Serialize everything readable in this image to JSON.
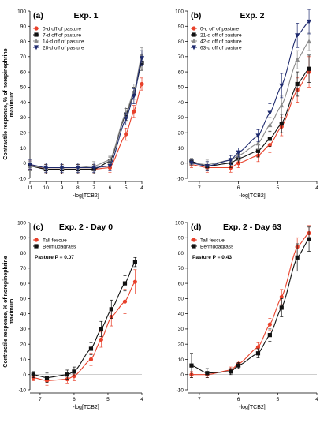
{
  "figure": {
    "y_axis_label_lines": [
      "Contractile response, % of norepinephrine",
      "maximum"
    ]
  },
  "chart_data": [
    {
      "type": "line",
      "panel_label": "(a)",
      "title": "Exp. 1",
      "xlabel": "-log[TCB2]",
      "xlim": [
        11,
        4
      ],
      "ylim": [
        -10,
        100
      ],
      "xticks": [
        11,
        10,
        9,
        8,
        7,
        6,
        5,
        4
      ],
      "yticks": [
        -10,
        0,
        10,
        20,
        30,
        40,
        50,
        60,
        70,
        80,
        90,
        100
      ],
      "legend_position": "top-left",
      "x": [
        11,
        10,
        9,
        8,
        7,
        6,
        5,
        4.5,
        4
      ],
      "series": [
        {
          "name": "0-d off of pasture",
          "color": "#e8402a",
          "marker": "circle",
          "values": [
            -1,
            -4,
            -4,
            -4,
            -4,
            -3,
            19,
            34,
            52
          ],
          "errors": [
            3,
            3,
            3,
            3,
            3,
            3,
            4,
            4,
            4
          ]
        },
        {
          "name": "7-d off of pasture",
          "color": "#111111",
          "marker": "square",
          "values": [
            -2,
            -4,
            -4,
            -4,
            -4,
            1,
            32,
            46,
            66
          ],
          "errors": [
            3,
            3,
            3,
            3,
            3,
            3,
            4,
            4,
            5
          ]
        },
        {
          "name": "14-d off of pasture",
          "color": "#8a8a8a",
          "marker": "triangle-up",
          "values": [
            -2,
            -3,
            -3,
            -3,
            -2,
            2,
            33,
            47,
            71
          ],
          "errors": [
            3,
            3,
            3,
            3,
            3,
            3,
            4,
            5,
            5
          ]
        },
        {
          "name": "28-d off of pasture",
          "color": "#1e2a6e",
          "marker": "triangle-down",
          "values": [
            -1,
            -3,
            -3,
            -3,
            -3,
            -2,
            29,
            44,
            69
          ],
          "errors": [
            3,
            3,
            3,
            3,
            3,
            3,
            4,
            5,
            5
          ]
        }
      ]
    },
    {
      "type": "line",
      "panel_label": "(b)",
      "title": "Exp. 2",
      "xlabel": "-log[TCB2]",
      "xlim": [
        7.3,
        4
      ],
      "ylim": [
        -10,
        100
      ],
      "xticks": [
        7,
        6,
        5,
        4
      ],
      "yticks": [
        -10,
        0,
        10,
        20,
        30,
        40,
        50,
        60,
        70,
        80,
        90,
        100
      ],
      "legend_position": "top-left",
      "x": [
        7.2,
        6.8,
        6.2,
        6,
        5.5,
        5.2,
        4.9,
        4.5,
        4.2
      ],
      "series": [
        {
          "name": "0-d off of pasture",
          "color": "#e8402a",
          "marker": "circle",
          "values": [
            -1,
            -3,
            -3,
            0,
            5,
            12,
            24,
            48,
            60
          ],
          "errors": [
            2,
            3,
            3,
            3,
            4,
            5,
            6,
            8,
            10
          ]
        },
        {
          "name": "21-d off of pasture",
          "color": "#111111",
          "marker": "square",
          "values": [
            1,
            -2,
            0,
            3,
            8,
            16,
            26,
            52,
            62
          ],
          "errors": [
            2,
            3,
            3,
            3,
            4,
            5,
            6,
            8,
            9
          ]
        },
        {
          "name": "42-d off of pasture",
          "color": "#8a8a8a",
          "marker": "triangle-up",
          "values": [
            0,
            -1,
            2,
            5,
            13,
            25,
            38,
            68,
            80
          ],
          "errors": [
            2,
            3,
            3,
            3,
            4,
            5,
            6,
            6,
            6
          ]
        },
        {
          "name": "63-d off of pasture",
          "color": "#1e2a6e",
          "marker": "triangle-down",
          "values": [
            0,
            -2,
            2,
            7,
            18,
            33,
            51,
            84,
            93
          ],
          "errors": [
            2,
            3,
            3,
            3,
            4,
            6,
            8,
            8,
            8
          ]
        }
      ]
    },
    {
      "type": "line",
      "panel_label": "(c)",
      "title": "Exp. 2 - Day 0",
      "annotation": "Pasture P = 0.07",
      "xlabel": "-log[TCB2]",
      "xlim": [
        7.3,
        4
      ],
      "ylim": [
        -10,
        100
      ],
      "xticks": [
        7,
        6,
        5,
        4
      ],
      "yticks": [
        -10,
        0,
        10,
        20,
        30,
        40,
        50,
        60,
        70,
        80,
        90,
        100
      ],
      "legend_position": "top-left",
      "x": [
        7.2,
        6.8,
        6.2,
        6,
        5.5,
        5.2,
        4.9,
        4.5,
        4.2
      ],
      "series": [
        {
          "name": "Tall fescue",
          "color": "#e8402a",
          "marker": "circle",
          "values": [
            -2,
            -4,
            -3,
            -1,
            10,
            23,
            38,
            48,
            61
          ],
          "errors": [
            2,
            3,
            3,
            3,
            4,
            5,
            6,
            8,
            8
          ]
        },
        {
          "name": "Bermudagrass",
          "color": "#111111",
          "marker": "square",
          "values": [
            0,
            -2,
            0,
            2,
            17,
            30,
            43,
            60,
            74
          ],
          "errors": [
            2,
            3,
            3,
            3,
            4,
            5,
            6,
            5,
            3
          ]
        }
      ]
    },
    {
      "type": "line",
      "panel_label": "(d)",
      "title": "Exp. 2 - Day 63",
      "annotation": "Pasture P = 0.43",
      "xlabel": "-log[TCB2]",
      "xlim": [
        7.3,
        4
      ],
      "ylim": [
        -10,
        100
      ],
      "xticks": [
        7,
        6,
        5,
        4
      ],
      "yticks": [
        -10,
        0,
        10,
        20,
        30,
        40,
        50,
        60,
        70,
        80,
        90,
        100
      ],
      "legend_position": "top-left",
      "x": [
        7.2,
        6.8,
        6.2,
        6,
        5.5,
        5.2,
        4.9,
        4.5,
        4.2
      ],
      "series": [
        {
          "name": "Tall fescue",
          "color": "#e8402a",
          "marker": "circle",
          "values": [
            0,
            0,
            3,
            7,
            18,
            33,
            51,
            84,
            93
          ],
          "errors": [
            2,
            2,
            2,
            2,
            3,
            4,
            5,
            6,
            5
          ]
        },
        {
          "name": "Bermudagrass",
          "color": "#111111",
          "marker": "square",
          "values": [
            6,
            1,
            2,
            6,
            14,
            26,
            44,
            77,
            89
          ],
          "errors": [
            8,
            3,
            2,
            2,
            3,
            4,
            6,
            9,
            8
          ]
        }
      ]
    }
  ]
}
